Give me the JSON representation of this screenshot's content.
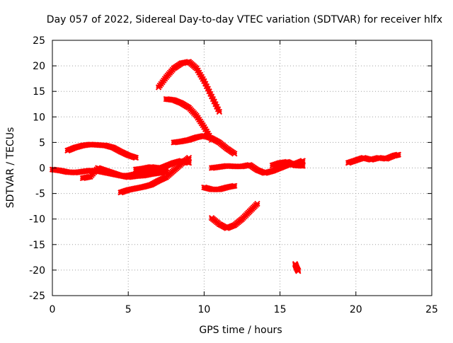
{
  "chart_data": {
    "type": "scatter",
    "title": "Day 057 of 2022, Sidereal Day-to-day VTEC variation (SDTVAR) for receiver hlfx",
    "xlabel": "GPS time / hours",
    "ylabel": "SDTVAR / TECUs",
    "xlim": [
      0,
      25
    ],
    "ylim": [
      -25,
      25
    ],
    "x_ticks": [
      0,
      5,
      10,
      15,
      20,
      25
    ],
    "y_ticks": [
      -25,
      -20,
      -15,
      -10,
      -5,
      0,
      5,
      10,
      15,
      20,
      25
    ],
    "grid": true,
    "marker_color": "#ff0000",
    "series": [
      {
        "x": [
          0.0,
          0.5,
          1.0,
          1.5,
          2.0,
          2.5,
          3.0,
          3.5,
          4.0,
          4.5,
          5.0,
          5.5,
          6.0,
          6.5,
          7.0,
          7.5,
          8.0,
          8.5,
          9.0
        ],
        "y": [
          -0.3,
          -0.5,
          -0.8,
          -0.9,
          -0.7,
          -0.5,
          -0.6,
          -0.9,
          -1.2,
          -1.5,
          -1.5,
          -1.2,
          -0.8,
          -0.5,
          -0.2,
          0.4,
          1.0,
          1.4,
          1.0
        ]
      },
      {
        "x": [
          1.0,
          1.5,
          2.0,
          2.5,
          3.0,
          3.5,
          4.0,
          4.5,
          5.0,
          5.5
        ],
        "y": [
          3.4,
          4.0,
          4.4,
          4.6,
          4.5,
          4.4,
          4.0,
          3.2,
          2.5,
          2.0
        ]
      },
      {
        "x": [
          2.0,
          2.5,
          3.0,
          3.5,
          4.0,
          4.5,
          5.0,
          5.5,
          6.0,
          6.5,
          7.0,
          7.5
        ],
        "y": [
          -2.0,
          -1.7,
          0.0,
          -0.5,
          -1.0,
          -1.5,
          -1.8,
          -1.6,
          -1.5,
          -1.2,
          -1.0,
          -0.8
        ]
      },
      {
        "x": [
          4.5,
          5.0,
          5.5,
          6.0,
          6.5,
          7.0,
          7.5,
          8.0,
          8.5,
          9.0
        ],
        "y": [
          -4.8,
          -4.3,
          -4.0,
          -3.7,
          -3.3,
          -2.5,
          -1.8,
          -0.5,
          0.8,
          2.0
        ]
      },
      {
        "x": [
          5.5,
          6.0,
          6.5,
          7.0,
          7.5
        ],
        "y": [
          -0.3,
          -0.1,
          0.2,
          0.0,
          -0.4
        ]
      },
      {
        "x": [
          7.0,
          7.5,
          8.0,
          8.5,
          9.0,
          9.5,
          10.0,
          10.5,
          11.0
        ],
        "y": [
          15.8,
          17.8,
          19.5,
          20.5,
          20.8,
          19.5,
          17.0,
          14.0,
          11.0
        ]
      },
      {
        "x": [
          7.5,
          8.0,
          8.5,
          9.0,
          9.5,
          10.0,
          10.5
        ],
        "y": [
          13.5,
          13.3,
          12.7,
          11.8,
          10.2,
          8.0,
          5.5
        ]
      },
      {
        "x": [
          8.0,
          8.5,
          9.0,
          9.5,
          10.0,
          10.5,
          11.0,
          11.5,
          12.0
        ],
        "y": [
          5.0,
          5.2,
          5.5,
          6.0,
          6.3,
          5.8,
          5.0,
          3.8,
          2.8
        ]
      },
      {
        "x": [
          10.0,
          10.5,
          11.0,
          11.5,
          12.0
        ],
        "y": [
          -3.8,
          -4.2,
          -4.2,
          -3.8,
          -3.5
        ]
      },
      {
        "x": [
          10.5,
          11.0,
          11.5,
          12.0,
          12.5,
          13.0,
          13.5
        ],
        "y": [
          -9.8,
          -11.0,
          -11.8,
          -11.2,
          -10.0,
          -8.5,
          -7.0
        ]
      },
      {
        "x": [
          10.5,
          11.0,
          11.5,
          12.0,
          12.5,
          13.0,
          13.5,
          14.0,
          14.5,
          15.0,
          15.5,
          16.0,
          16.5
        ],
        "y": [
          0.0,
          0.2,
          0.4,
          0.3,
          0.3,
          0.6,
          -0.4,
          -1.0,
          -0.6,
          0.0,
          0.6,
          0.8,
          1.4
        ]
      },
      {
        "x": [
          14.5,
          15.0,
          15.5,
          16.0,
          16.5
        ],
        "y": [
          0.5,
          1.0,
          1.2,
          0.5,
          0.4
        ]
      },
      {
        "x": [
          16.0,
          16.1,
          16.2
        ],
        "y": [
          -18.8,
          -19.6,
          -20.2
        ]
      },
      {
        "x": [
          19.5,
          20.0,
          20.5,
          21.0,
          21.5,
          22.0,
          22.5,
          22.8
        ],
        "y": [
          1.0,
          1.5,
          2.0,
          1.6,
          2.0,
          1.8,
          2.4,
          2.6
        ]
      }
    ]
  }
}
